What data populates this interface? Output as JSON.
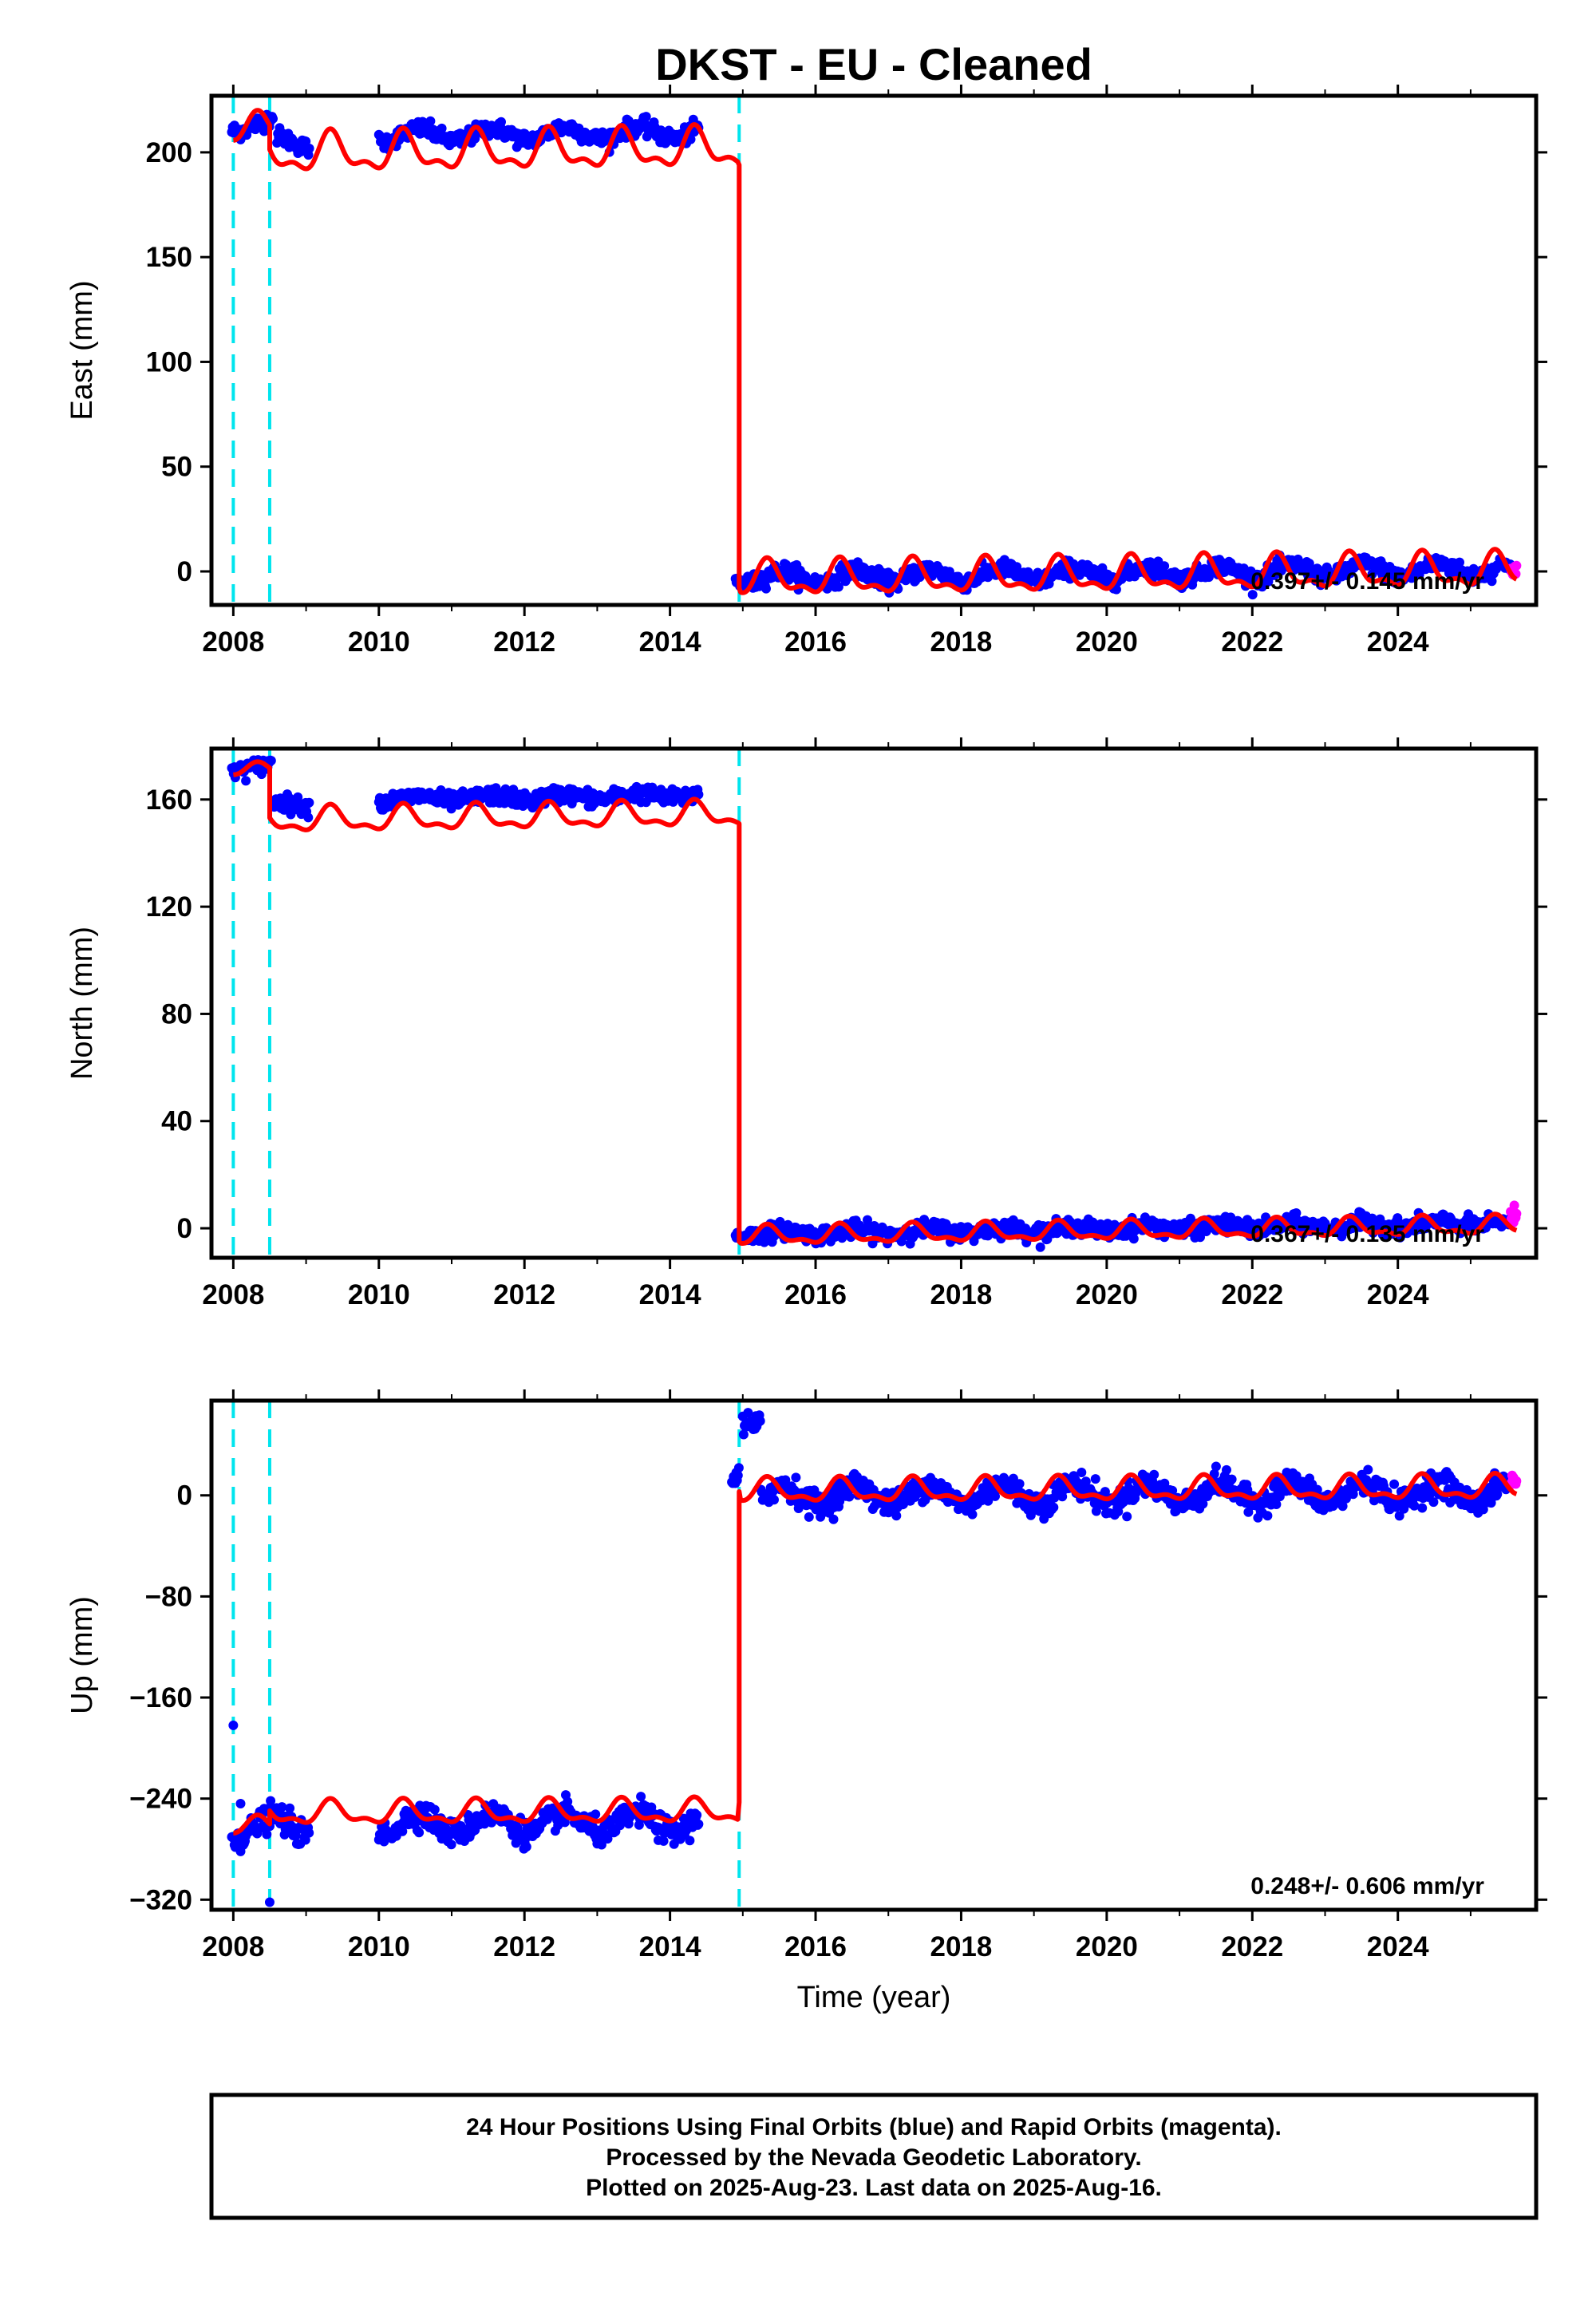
{
  "title": "DKST  - EU - Cleaned",
  "xlabel": "Time (year)",
  "footer": {
    "line1": "24 Hour Positions Using Final Orbits (blue) and Rapid Orbits (magenta).",
    "line2": "Processed by the Nevada Geodetic Laboratory.",
    "line3": "Plotted on 2025-Aug-23. Last data on 2025-Aug-16."
  },
  "colors": {
    "final_orbits": "#0000ff",
    "rapid_orbits": "#ff00ff",
    "model": "#ff0000",
    "steps": "#00e5ee",
    "frame": "#000000"
  },
  "chart_data": [
    {
      "type": "scatter",
      "component": "east",
      "ylabel": "East (mm)",
      "xlim": [
        2007.7,
        2025.9
      ],
      "ylim": [
        -16,
        227
      ],
      "x_ticks": [
        2008,
        2010,
        2012,
        2014,
        2016,
        2018,
        2020,
        2022,
        2024
      ],
      "y_ticks": [
        0,
        50,
        100,
        150,
        200
      ],
      "rate_label": "0.397+/- 0.145 mm/yr",
      "step_epochs": [
        2008.0,
        2008.5,
        2014.95
      ],
      "segments": [
        {
          "x0": 2007.98,
          "x1": 2008.55,
          "level": 213,
          "trend": 0.4,
          "amp": 3,
          "noise": 2.0,
          "sigma": 2.0
        },
        {
          "x0": 2008.6,
          "x1": 2009.05,
          "level": 205,
          "trend": 0.4,
          "amp": 3,
          "noise": 2.0,
          "sigma": 2.0
        },
        {
          "x0": 2010.0,
          "x1": 2014.4,
          "level": 208,
          "trend": 0.4,
          "amp": 3,
          "noise": 2.0,
          "sigma": 2.0
        },
        {
          "x0": 2014.9,
          "x1": 2025.55,
          "level": -3,
          "trend": 0.4,
          "amp": 3,
          "noise": 2.0,
          "sigma": 2.0
        }
      ],
      "rapid": {
        "x0": 2025.55,
        "x1": 2025.63,
        "level": -1
      },
      "model": [
        {
          "x0": 2008.0,
          "x1": 2008.5,
          "level": 211,
          "trend": 0.4,
          "amp": 6
        },
        {
          "x0": 2008.5,
          "x1": 2014.93,
          "level": 199,
          "trend": 0.4,
          "amp": 8
        },
        {
          "x0": 2014.97,
          "x1": 2025.63,
          "level": -4,
          "trend": 0.4,
          "amp": 7
        }
      ],
      "model_jump": {
        "x": 2014.95,
        "from": 194,
        "to": -8
      }
    },
    {
      "type": "scatter",
      "component": "north",
      "ylabel": "North (mm)",
      "xlim": [
        2007.7,
        2025.9
      ],
      "ylim": [
        -11,
        179
      ],
      "x_ticks": [
        2008,
        2010,
        2012,
        2014,
        2016,
        2018,
        2020,
        2022,
        2024
      ],
      "y_ticks": [
        0,
        40,
        80,
        120,
        160
      ],
      "rate_label": "0.367+/- 0.135 mm/yr",
      "step_epochs": [
        2008.0,
        2008.5,
        2014.95
      ],
      "segments": [
        {
          "x0": 2007.98,
          "x1": 2008.52,
          "level": 172,
          "trend": 0.37,
          "amp": 1,
          "noise": 1.5,
          "sigma": 1.5
        },
        {
          "x0": 2008.55,
          "x1": 2009.05,
          "level": 158,
          "trend": 0.37,
          "amp": 1,
          "noise": 1.5,
          "sigma": 1.5
        },
        {
          "x0": 2010.0,
          "x1": 2014.4,
          "level": 160,
          "trend": 0.37,
          "amp": 1,
          "noise": 1.5,
          "sigma": 1.5
        },
        {
          "x0": 2014.9,
          "x1": 2025.55,
          "level": -2,
          "trend": 0.37,
          "amp": 1,
          "noise": 1.5,
          "sigma": 1.5
        }
      ],
      "rapid": {
        "x0": 2025.55,
        "x1": 2025.63,
        "level": 4
      },
      "model": [
        {
          "x0": 2008.0,
          "x1": 2008.5,
          "level": 171,
          "trend": 0.37,
          "amp": 2
        },
        {
          "x0": 2008.5,
          "x1": 2014.93,
          "level": 152,
          "trend": 0.37,
          "amp": 4
        },
        {
          "x0": 2014.97,
          "x1": 2025.63,
          "level": -3,
          "trend": 0.37,
          "amp": 3
        }
      ],
      "model_jump": {
        "x": 2014.95,
        "from": 151,
        "to": -5
      }
    },
    {
      "type": "scatter",
      "component": "up",
      "ylabel": "Up (mm)",
      "xlim": [
        2007.7,
        2025.9
      ],
      "ylim": [
        -328,
        75
      ],
      "x_ticks": [
        2008,
        2010,
        2012,
        2014,
        2016,
        2018,
        2020,
        2022,
        2024
      ],
      "y_ticks": [
        0,
        -80,
        -160,
        -240,
        -320
      ],
      "rate_label": "0.248+/- 0.606 mm/yr",
      "step_epochs": [
        2008.0,
        2008.5,
        2014.95
      ],
      "segments": [
        {
          "x0": 2007.98,
          "x1": 2008.5,
          "level": -263,
          "trend": 0.25,
          "amp": 8,
          "noise": 5,
          "sigma": 5
        },
        {
          "x0": 2008.5,
          "x1": 2009.05,
          "level": -262,
          "trend": 0.25,
          "amp": 8,
          "noise": 5,
          "sigma": 5
        },
        {
          "x0": 2010.0,
          "x1": 2014.4,
          "level": -260,
          "trend": 0.25,
          "amp": 8,
          "noise": 5,
          "sigma": 5
        },
        {
          "x0": 2014.85,
          "x1": 2014.95,
          "level": 15,
          "trend": 0,
          "amp": 0,
          "noise": 5,
          "sigma": 5
        },
        {
          "x0": 2015.0,
          "x1": 2015.25,
          "level": 55,
          "trend": 0,
          "amp": 0,
          "noise": 5,
          "sigma": 5
        },
        {
          "x0": 2015.25,
          "x1": 2025.55,
          "level": 0,
          "trend": 0.25,
          "amp": 8,
          "noise": 5,
          "sigma": 5
        }
      ],
      "outliers": [
        {
          "x": 2008.0,
          "y": -182
        },
        {
          "x": 2008.5,
          "y": -322
        },
        {
          "x": 2008.1,
          "y": -244
        }
      ],
      "rapid": {
        "x0": 2025.55,
        "x1": 2025.63,
        "level": 12
      },
      "model": [
        {
          "x0": 2008.0,
          "x1": 2008.5,
          "level": -262,
          "trend": 0.25,
          "amp": 6
        },
        {
          "x0": 2008.5,
          "x1": 2014.93,
          "level": -252,
          "trend": 0.25,
          "amp": 8
        },
        {
          "x0": 2014.97,
          "x1": 2025.63,
          "level": 3,
          "trend": 0.25,
          "amp": 8
        }
      ],
      "model_jump": {
        "x": 2014.95,
        "from": -243,
        "to": 3
      }
    }
  ]
}
